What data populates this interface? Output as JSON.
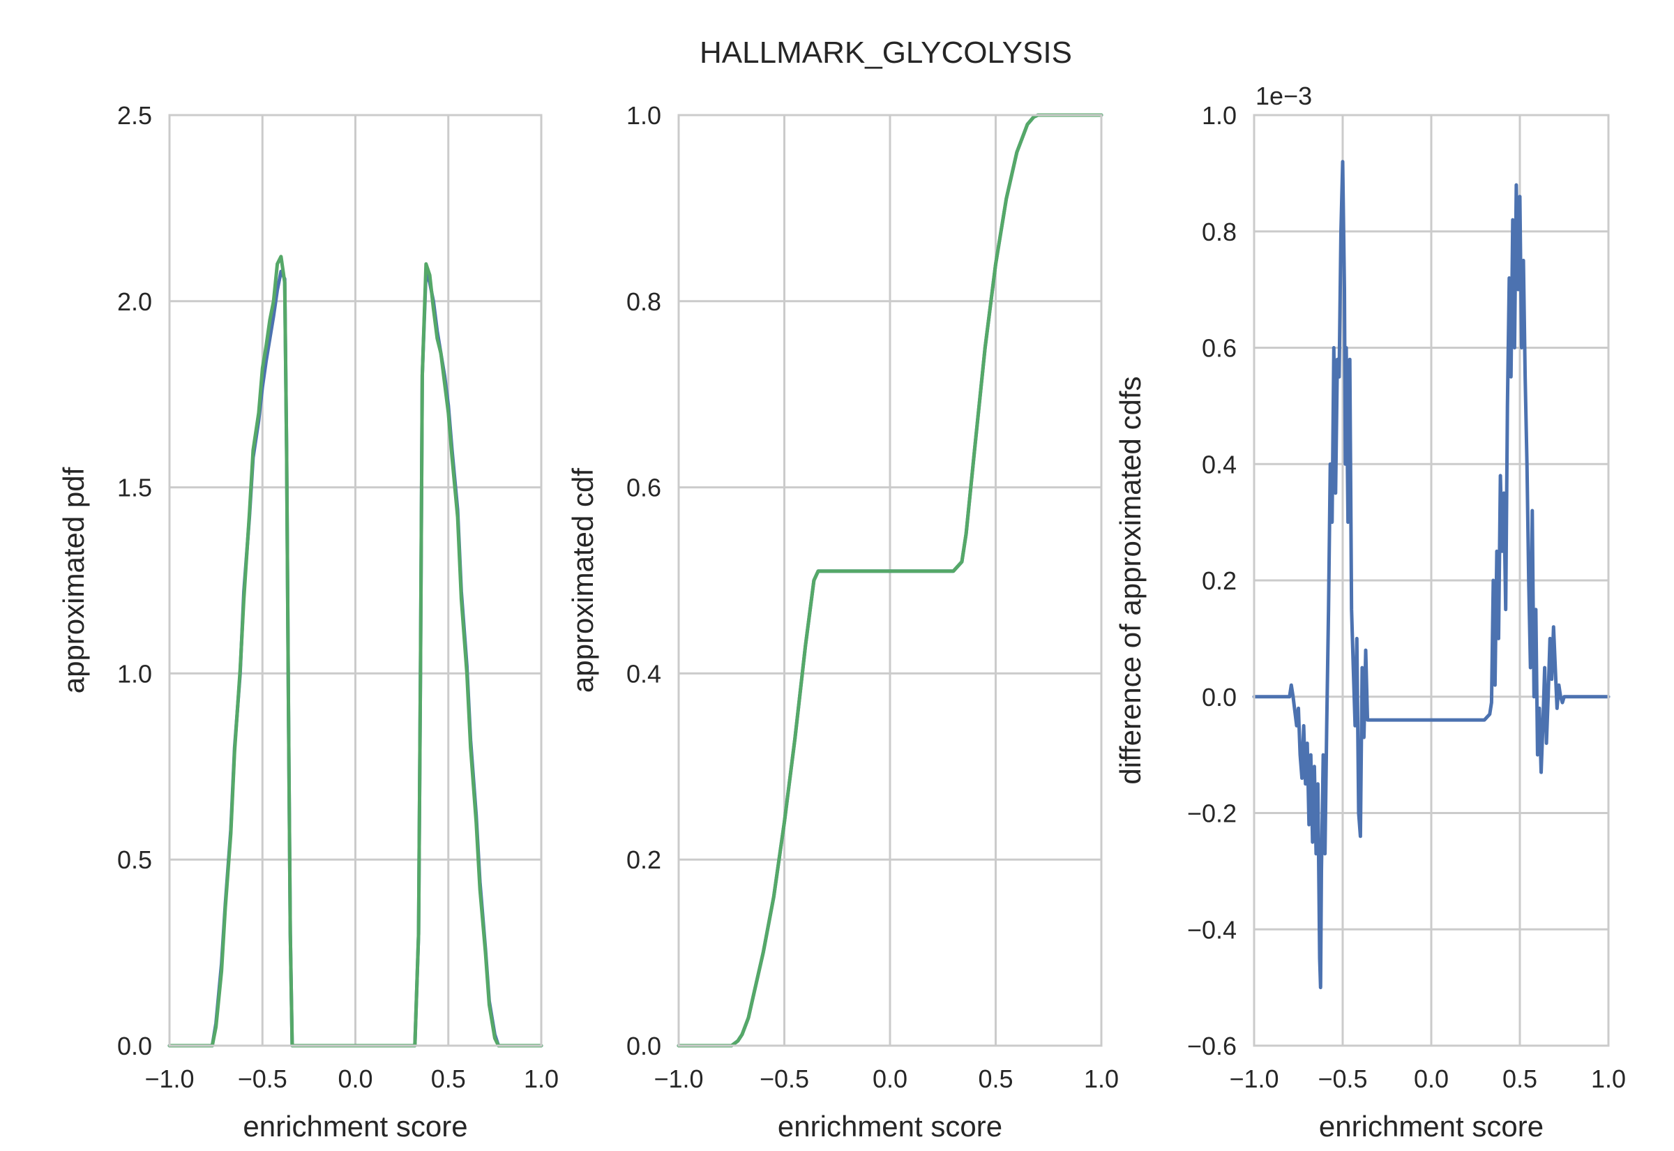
{
  "figure": {
    "title": "HALLMARK_GLYCOLYSIS"
  },
  "colors": {
    "blue": "#4c72b0",
    "green": "#55a868",
    "grid": "#cbcbcb",
    "text": "#262626"
  },
  "chart_data": [
    {
      "type": "line",
      "title": "",
      "xlabel": "enrichment score",
      "ylabel": "approximated pdf",
      "xlim": [
        -1.0,
        1.0
      ],
      "ylim": [
        0.0,
        2.5
      ],
      "xticks": [
        -1.0,
        -0.5,
        0.0,
        0.5,
        1.0
      ],
      "xtick_labels": [
        "−1.0",
        "−0.5",
        "0.0",
        "0.5",
        "1.0"
      ],
      "yticks": [
        0.0,
        0.5,
        1.0,
        1.5,
        2.0,
        2.5
      ],
      "ytick_labels": [
        "0.0",
        "0.5",
        "1.0",
        "1.5",
        "2.0",
        "2.5"
      ],
      "grid": true,
      "series": [
        {
          "color": "#4c72b0",
          "x": [
            -1.0,
            -0.77,
            -0.75,
            -0.72,
            -0.7,
            -0.67,
            -0.65,
            -0.62,
            -0.6,
            -0.57,
            -0.55,
            -0.52,
            -0.5,
            -0.48,
            -0.46,
            -0.44,
            -0.42,
            -0.4,
            -0.38,
            -0.37,
            -0.36,
            -0.35,
            -0.34,
            -0.3,
            0.0,
            0.32,
            0.34,
            0.35,
            0.36,
            0.38,
            0.4,
            0.42,
            0.44,
            0.46,
            0.48,
            0.5,
            0.52,
            0.55,
            0.57,
            0.6,
            0.62,
            0.65,
            0.67,
            0.7,
            0.72,
            0.75,
            0.77,
            1.0
          ],
          "y": [
            0.0,
            0.0,
            0.06,
            0.22,
            0.38,
            0.58,
            0.8,
            1.0,
            1.22,
            1.42,
            1.58,
            1.68,
            1.77,
            1.84,
            1.9,
            1.96,
            2.03,
            2.08,
            2.06,
            1.6,
            0.9,
            0.3,
            0.0,
            0.0,
            0.0,
            0.0,
            0.3,
            1.0,
            1.8,
            2.08,
            2.05,
            2.0,
            1.92,
            1.86,
            1.8,
            1.72,
            1.6,
            1.44,
            1.22,
            1.02,
            0.82,
            0.62,
            0.44,
            0.26,
            0.12,
            0.03,
            0.0,
            0.0
          ]
        },
        {
          "color": "#55a868",
          "x": [
            -1.0,
            -0.77,
            -0.75,
            -0.72,
            -0.7,
            -0.67,
            -0.65,
            -0.62,
            -0.6,
            -0.57,
            -0.55,
            -0.52,
            -0.5,
            -0.48,
            -0.46,
            -0.44,
            -0.42,
            -0.4,
            -0.38,
            -0.37,
            -0.36,
            -0.35,
            -0.34,
            -0.3,
            0.0,
            0.32,
            0.34,
            0.35,
            0.36,
            0.38,
            0.4,
            0.42,
            0.44,
            0.46,
            0.48,
            0.5,
            0.52,
            0.55,
            0.57,
            0.6,
            0.62,
            0.65,
            0.67,
            0.7,
            0.72,
            0.75,
            0.77,
            1.0
          ],
          "y": [
            0.0,
            0.0,
            0.05,
            0.2,
            0.37,
            0.57,
            0.79,
            1.01,
            1.2,
            1.43,
            1.6,
            1.7,
            1.82,
            1.88,
            1.95,
            2.0,
            2.1,
            2.12,
            2.05,
            1.6,
            0.9,
            0.3,
            0.0,
            0.0,
            0.0,
            0.0,
            0.3,
            1.0,
            1.8,
            2.1,
            2.07,
            1.98,
            1.9,
            1.86,
            1.78,
            1.7,
            1.58,
            1.42,
            1.2,
            1.0,
            0.8,
            0.6,
            0.42,
            0.25,
            0.11,
            0.02,
            0.0,
            0.0
          ]
        }
      ]
    },
    {
      "type": "line",
      "title": "",
      "xlabel": "enrichment score",
      "ylabel": "approximated cdf",
      "xlim": [
        -1.0,
        1.0
      ],
      "ylim": [
        0.0,
        1.0
      ],
      "xticks": [
        -1.0,
        -0.5,
        0.0,
        0.5,
        1.0
      ],
      "xtick_labels": [
        "−1.0",
        "−0.5",
        "0.0",
        "0.5",
        "1.0"
      ],
      "yticks": [
        0.0,
        0.2,
        0.4,
        0.6,
        0.8,
        1.0
      ],
      "ytick_labels": [
        "0.0",
        "0.2",
        "0.4",
        "0.6",
        "0.8",
        "1.0"
      ],
      "grid": true,
      "series": [
        {
          "color": "#4c72b0",
          "x": [
            -1.0,
            -0.75,
            -0.72,
            -0.7,
            -0.67,
            -0.65,
            -0.6,
            -0.55,
            -0.5,
            -0.45,
            -0.4,
            -0.36,
            -0.34,
            -0.3,
            0.0,
            0.3,
            0.34,
            0.36,
            0.4,
            0.45,
            0.5,
            0.55,
            0.6,
            0.65,
            0.68,
            0.7,
            0.72,
            1.0
          ],
          "y": [
            0.0,
            0.0,
            0.005,
            0.012,
            0.03,
            0.05,
            0.1,
            0.16,
            0.24,
            0.33,
            0.43,
            0.5,
            0.51,
            0.51,
            0.51,
            0.51,
            0.52,
            0.55,
            0.64,
            0.75,
            0.84,
            0.91,
            0.96,
            0.99,
            0.998,
            1.0,
            1.0,
            1.0
          ]
        },
        {
          "color": "#55a868",
          "x": [
            -1.0,
            -0.75,
            -0.72,
            -0.7,
            -0.67,
            -0.65,
            -0.6,
            -0.55,
            -0.5,
            -0.45,
            -0.4,
            -0.36,
            -0.34,
            -0.3,
            0.0,
            0.3,
            0.34,
            0.36,
            0.4,
            0.45,
            0.5,
            0.55,
            0.6,
            0.65,
            0.68,
            0.7,
            0.72,
            1.0
          ],
          "y": [
            0.0,
            0.0,
            0.005,
            0.012,
            0.03,
            0.05,
            0.1,
            0.16,
            0.24,
            0.33,
            0.43,
            0.5,
            0.51,
            0.51,
            0.51,
            0.51,
            0.52,
            0.55,
            0.64,
            0.75,
            0.84,
            0.91,
            0.96,
            0.99,
            0.998,
            1.0,
            1.0,
            1.0
          ]
        }
      ]
    },
    {
      "type": "line",
      "title": "",
      "xlabel": "enrichment score",
      "ylabel": "difference of approximated cdfs",
      "offset_label": "1e−3",
      "xlim": [
        -1.0,
        1.0
      ],
      "ylim": [
        -0.6,
        1.0
      ],
      "xticks": [
        -1.0,
        -0.5,
        0.0,
        0.5,
        1.0
      ],
      "xtick_labels": [
        "−1.0",
        "−0.5",
        "0.0",
        "0.5",
        "1.0"
      ],
      "yticks": [
        -0.6,
        -0.4,
        -0.2,
        0.0,
        0.2,
        0.4,
        0.6,
        0.8,
        1.0
      ],
      "ytick_labels": [
        "−0.6",
        "−0.4",
        "−0.2",
        "0.0",
        "0.2",
        "0.4",
        "0.6",
        "0.8",
        "1.0"
      ],
      "grid": true,
      "series": [
        {
          "color": "#4c72b0",
          "x": [
            -1.0,
            -0.8,
            -0.79,
            -0.78,
            -0.76,
            -0.75,
            -0.74,
            -0.73,
            -0.72,
            -0.71,
            -0.7,
            -0.69,
            -0.68,
            -0.67,
            -0.66,
            -0.65,
            -0.64,
            -0.63,
            -0.625,
            -0.62,
            -0.61,
            -0.6,
            -0.59,
            -0.58,
            -0.57,
            -0.56,
            -0.55,
            -0.54,
            -0.53,
            -0.52,
            -0.51,
            -0.5,
            -0.49,
            -0.485,
            -0.48,
            -0.47,
            -0.46,
            -0.45,
            -0.44,
            -0.43,
            -0.42,
            -0.41,
            -0.4,
            -0.39,
            -0.38,
            -0.37,
            -0.36,
            -0.35,
            -0.34,
            -0.3,
            0.0,
            0.3,
            0.33,
            0.34,
            0.35,
            0.36,
            0.37,
            0.38,
            0.39,
            0.4,
            0.41,
            0.42,
            0.43,
            0.44,
            0.45,
            0.46,
            0.47,
            0.48,
            0.49,
            0.5,
            0.51,
            0.52,
            0.53,
            0.54,
            0.55,
            0.56,
            0.57,
            0.58,
            0.59,
            0.6,
            0.61,
            0.62,
            0.63,
            0.64,
            0.65,
            0.66,
            0.67,
            0.68,
            0.69,
            0.7,
            0.71,
            0.72,
            0.73,
            0.74,
            0.75,
            0.76,
            0.78,
            0.8,
            1.0
          ],
          "y": [
            0.0,
            0.0,
            0.02,
            0.0,
            -0.05,
            -0.02,
            -0.1,
            -0.14,
            -0.05,
            -0.15,
            -0.08,
            -0.22,
            -0.1,
            -0.25,
            -0.12,
            -0.27,
            -0.15,
            -0.45,
            -0.5,
            -0.3,
            -0.1,
            -0.27,
            -0.05,
            0.15,
            0.4,
            0.3,
            0.6,
            0.35,
            0.58,
            0.55,
            0.8,
            0.92,
            0.7,
            0.4,
            0.6,
            0.3,
            0.58,
            0.15,
            0.05,
            -0.05,
            0.1,
            -0.2,
            -0.24,
            0.05,
            -0.07,
            0.08,
            -0.04,
            -0.04,
            -0.04,
            -0.04,
            -0.04,
            -0.04,
            -0.03,
            -0.01,
            0.2,
            0.02,
            0.25,
            0.1,
            0.38,
            0.25,
            0.35,
            0.15,
            0.5,
            0.72,
            0.55,
            0.82,
            0.6,
            0.88,
            0.7,
            0.86,
            0.6,
            0.75,
            0.55,
            0.4,
            0.2,
            0.05,
            0.32,
            0.0,
            0.15,
            -0.1,
            -0.02,
            -0.13,
            -0.05,
            0.05,
            -0.08,
            0.0,
            0.1,
            0.03,
            0.12,
            0.05,
            -0.02,
            0.02,
            0.0,
            -0.01,
            0.0,
            0.0,
            0.0,
            0.0,
            0.0
          ]
        }
      ]
    }
  ]
}
